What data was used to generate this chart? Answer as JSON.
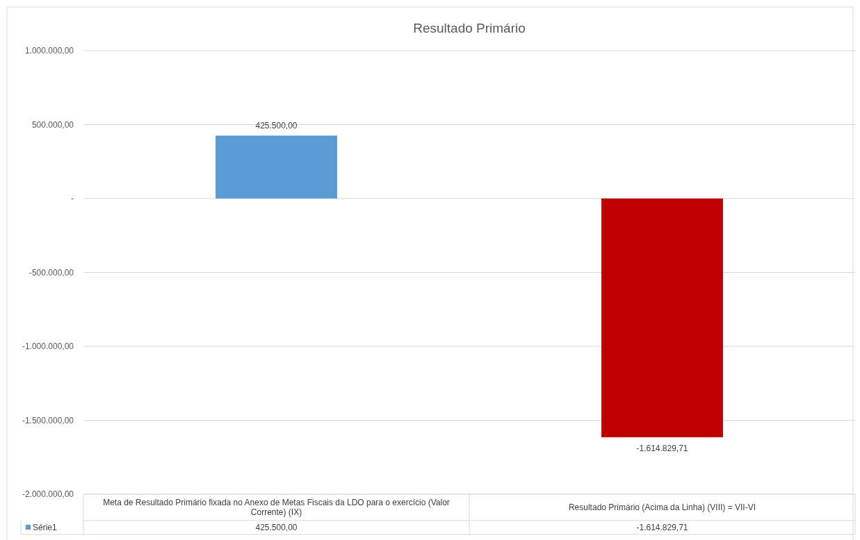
{
  "chart_data": {
    "type": "bar",
    "title": "Resultado Primário",
    "categories": [
      "Meta de Resultado Primário fixada no Anexo de Metas Fiscais da LDO para o exercício (Valor Corrente) (IX)",
      "Resultado Primário (Acima da Linha) (VIII) = VII-VI"
    ],
    "series": [
      {
        "name": "Série1",
        "color": "#5b9bd5",
        "colors": [
          "#5b9bd5",
          "#c00000"
        ],
        "values": [
          425500,
          -1614829.71
        ],
        "value_labels": [
          "425.500,00",
          "-1.614.829,71"
        ]
      }
    ],
    "ylim": [
      -2000000,
      1000000
    ],
    "yticks": [
      {
        "value": -2000000,
        "label": "-2.000.000,00"
      },
      {
        "value": -1500000,
        "label": "-1.500.000,00"
      },
      {
        "value": -1000000,
        "label": "-1.000.000,00"
      },
      {
        "value": -500000,
        "label": "-500.000,00"
      },
      {
        "value": 0,
        "label": "-"
      },
      {
        "value": 500000,
        "label": "500.000,00"
      },
      {
        "value": 1000000,
        "label": "1.000.000,00"
      }
    ],
    "grid": "y",
    "legend": "bottom left"
  }
}
